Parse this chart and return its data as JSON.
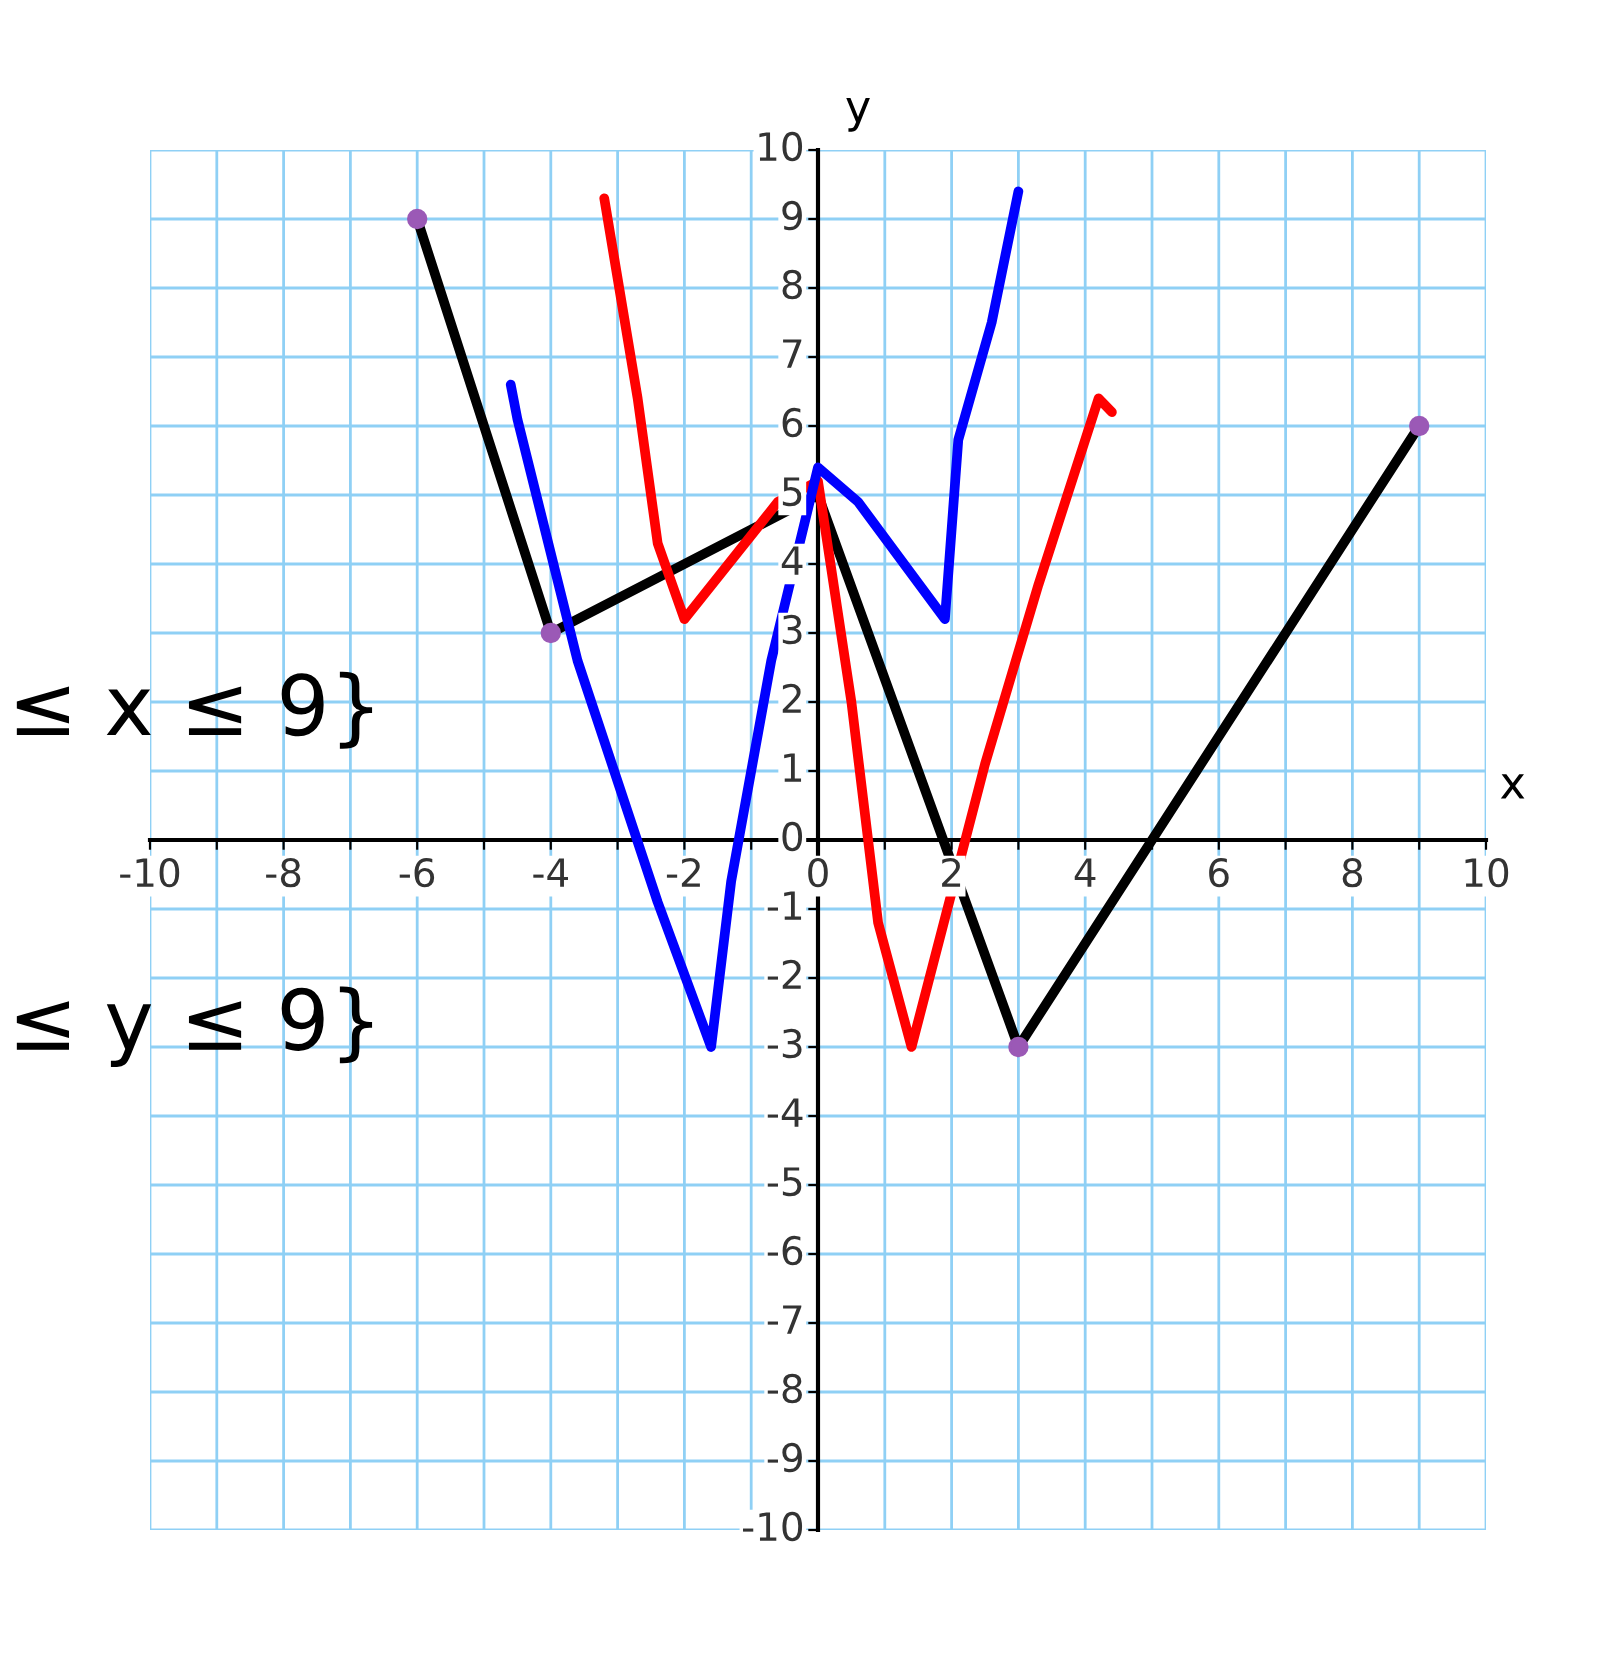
{
  "chart_data": {
    "type": "line",
    "xlabel": "x",
    "ylabel": "y",
    "xlim": [
      -10,
      10
    ],
    "ylim": [
      -10,
      10
    ],
    "xticks": [
      -10,
      {
        "value": -9,
        "label": null
      },
      -8,
      {
        "value": -7,
        "label": null
      },
      -6,
      {
        "value": -5,
        "label": null
      },
      -4,
      {
        "value": -3,
        "label": null
      },
      -2,
      {
        "value": -1,
        "label": null
      },
      0,
      {
        "value": 1,
        "label": null
      },
      2,
      {
        "value": 3,
        "label": null
      },
      4,
      {
        "value": 5,
        "label": null
      },
      6,
      {
        "value": 7,
        "label": null
      },
      8,
      {
        "value": 9,
        "label": null
      },
      10
    ],
    "yticks": [
      -10,
      -9,
      -8,
      -7,
      -6,
      -5,
      -4,
      -3,
      -2,
      -1,
      0,
      1,
      2,
      3,
      4,
      5,
      6,
      7,
      8,
      9,
      10
    ],
    "grid": true,
    "legend": false,
    "annotations": [
      "≤ x ≤ 9}",
      "≤ y ≤ 9}"
    ],
    "series": [
      {
        "color": "#000000",
        "x": [
          -6,
          -4,
          0,
          3,
          9
        ],
        "values": [
          9,
          3,
          5,
          -3,
          6
        ]
      },
      {
        "color": "#9b59b6",
        "type": "scatter",
        "marker": "circle",
        "x": [
          -6,
          -4,
          3,
          9
        ],
        "values": [
          9,
          3,
          -3,
          6
        ]
      },
      {
        "color": "#ff0000",
        "x": [
          -3.2,
          -2.7,
          -2.4,
          -2.0,
          -0.6,
          0,
          0.5,
          0.9,
          1.4,
          2.5,
          3.3,
          4.2,
          4.4
        ],
        "values": [
          9.3,
          6.4,
          4.3,
          3.2,
          4.9,
          5.2,
          2.0,
          -1.2,
          -3.0,
          1.1,
          3.7,
          6.4,
          6.2
        ]
      },
      {
        "color": "#0000ff",
        "x": [
          -4.6,
          -4.5,
          -3.6,
          -2.4,
          -1.6,
          -1.3,
          -0.7,
          0.0,
          0.6,
          1.9,
          2.1,
          2.6,
          3.0
        ],
        "values": [
          6.6,
          6.1,
          2.6,
          -0.9,
          -3.0,
          -0.6,
          2.6,
          5.4,
          4.9,
          3.2,
          5.8,
          7.5,
          9.4
        ]
      }
    ]
  }
}
